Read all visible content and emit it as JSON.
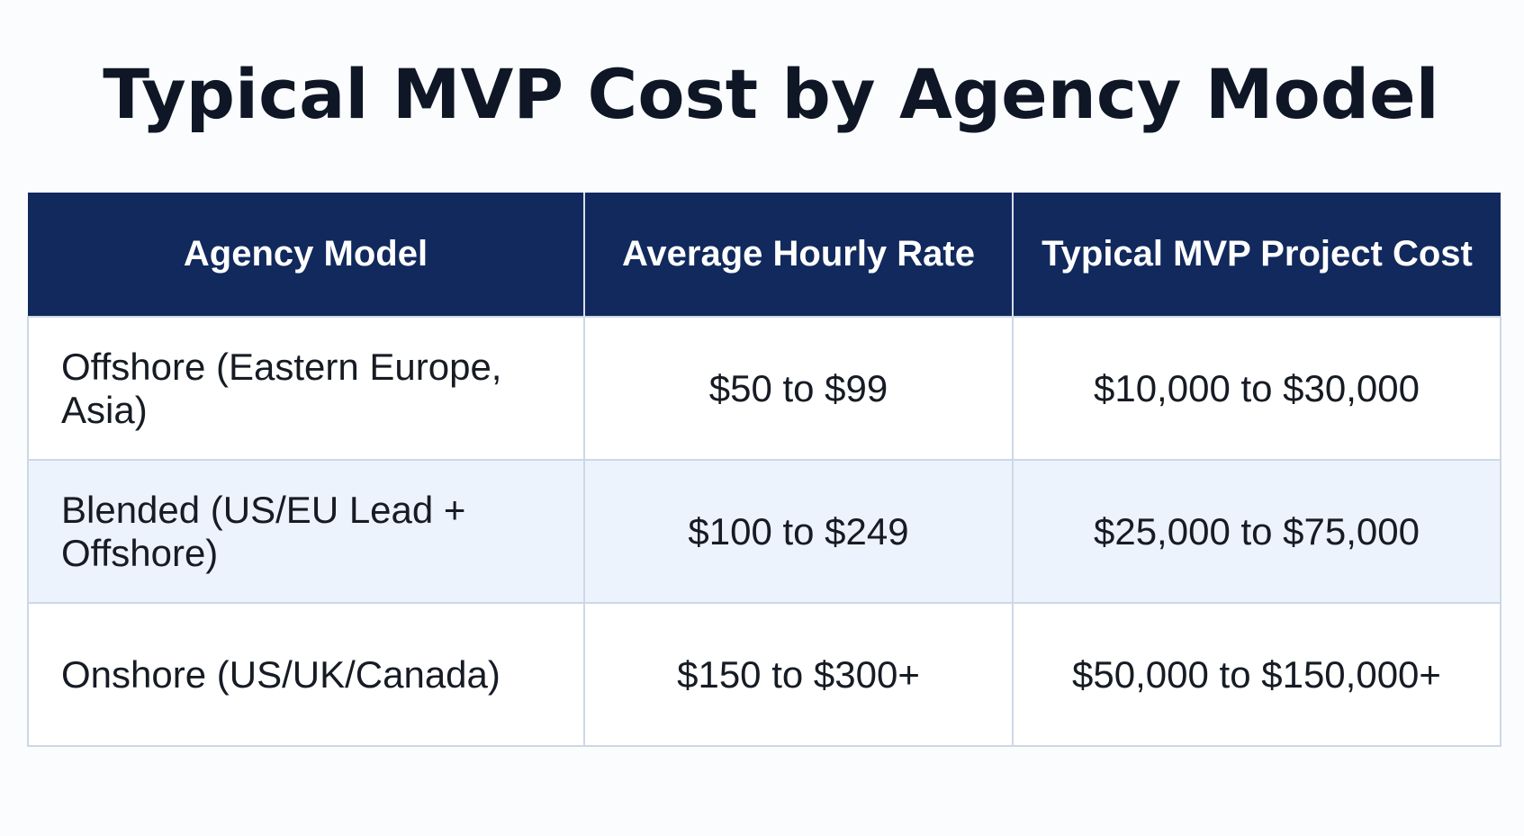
{
  "title": "Typical MVP Cost by Agency Model",
  "table": {
    "headers": [
      "Agency Model",
      "Average Hourly Rate",
      "Typical MVP Project Cost"
    ],
    "rows": [
      {
        "model": "Offshore (Eastern Europe, Asia)",
        "rate": "$50 to $99",
        "cost": "$10,000 to $30,000"
      },
      {
        "model": "Blended (US/EU Lead + Offshore)",
        "rate": "$100 to $249",
        "cost": "$25,000 to $75,000"
      },
      {
        "model": "Onshore (US/UK/Canada)",
        "rate": "$150 to $300+",
        "cost": "$50,000 to $150,000+"
      }
    ]
  },
  "colors": {
    "header_background": "#11295d",
    "header_text": "#ffffff",
    "alternate_row": "#ecf3fd",
    "border": "#cdd8e6"
  }
}
